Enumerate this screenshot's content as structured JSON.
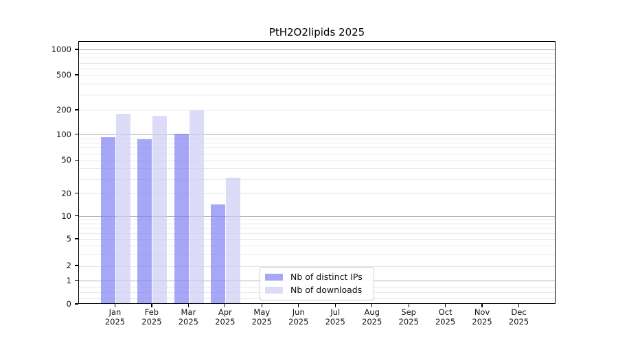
{
  "chart_data": {
    "type": "bar",
    "title": "PtH2O2lipids 2025",
    "categories": [
      {
        "line1": "Jan",
        "line2": "2025"
      },
      {
        "line1": "Feb",
        "line2": "2025"
      },
      {
        "line1": "Mar",
        "line2": "2025"
      },
      {
        "line1": "Apr",
        "line2": "2025"
      },
      {
        "line1": "May",
        "line2": "2025"
      },
      {
        "line1": "Jun",
        "line2": "2025"
      },
      {
        "line1": "Jul",
        "line2": "2025"
      },
      {
        "line1": "Aug",
        "line2": "2025"
      },
      {
        "line1": "Sep",
        "line2": "2025"
      },
      {
        "line1": "Oct",
        "line2": "2025"
      },
      {
        "line1": "Nov",
        "line2": "2025"
      },
      {
        "line1": "Dec",
        "line2": "2025"
      }
    ],
    "series": [
      {
        "name": "Nb of distinct IPs",
        "color": "rgba(130,130,244,0.7)",
        "legend_color": "#a8a8f2",
        "values": [
          90,
          86,
          100,
          14,
          0,
          0,
          0,
          0,
          0,
          0,
          0,
          0
        ]
      },
      {
        "name": "Nb of downloads",
        "color": "rgba(205,205,247,0.7)",
        "legend_color": "#dcdcf6",
        "values": [
          175,
          163,
          192,
          30,
          0,
          0,
          0,
          0,
          0,
          0,
          0,
          0
        ]
      }
    ],
    "yscale": "log",
    "yticks": [
      0,
      1,
      2,
      5,
      10,
      20,
      50,
      100,
      200,
      500,
      1000
    ],
    "ylabel": "",
    "xlabel": "",
    "grid": true,
    "legend_position": "lower center inside",
    "colors": {
      "major_grid": "#b0b0b0",
      "minor_grid": "#e7e7e7",
      "axis": "#000000",
      "background": "#ffffff"
    }
  }
}
